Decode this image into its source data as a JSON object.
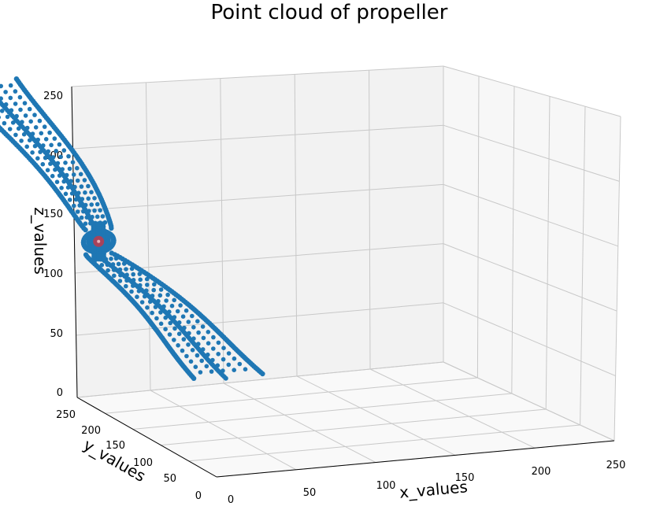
{
  "chart_data": {
    "type": "scatter",
    "projection": "3d",
    "title": "Point cloud of propeller",
    "xlabel": "x_values",
    "ylabel": "y_values",
    "zlabel": "z_values",
    "xlim": [
      0,
      250
    ],
    "ylim": [
      0,
      250
    ],
    "zlim": [
      0,
      250
    ],
    "x_ticks": [
      "0",
      "50",
      "100",
      "150",
      "200",
      "250"
    ],
    "y_ticks": [
      "0",
      "50",
      "100",
      "150",
      "200",
      "250"
    ],
    "z_ticks": [
      "0",
      "50",
      "100",
      "150",
      "200",
      "250"
    ],
    "grid": true,
    "colors": {
      "points": "#1f77b4",
      "center": "#c0394b",
      "pane_back": "#f2f2f2",
      "pane_side": "#f7f7f7",
      "pane_floor": "#f9f9f9",
      "grid": "#c8c8c8"
    },
    "hub_center": {
      "x": 60,
      "y": 60,
      "z": 70
    },
    "blade_top": {
      "from": {
        "x": 60,
        "y": 60,
        "z": 80
      },
      "to": {
        "x": 12,
        "y": 60,
        "z": 205
      },
      "width_start": 6,
      "width_end": 14,
      "rungs": 24
    },
    "blade_bottom": {
      "from": {
        "x": 60,
        "y": 60,
        "z": 60
      },
      "to": {
        "x": 122,
        "y": 60,
        "z": -45
      },
      "width_start": 6,
      "width_end": 16,
      "rungs": 22
    }
  }
}
